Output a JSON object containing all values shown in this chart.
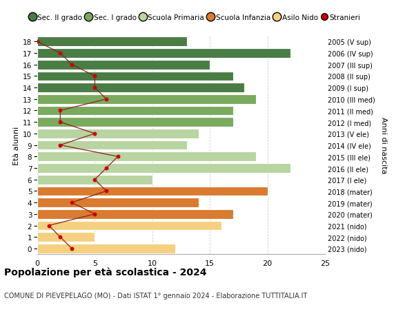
{
  "ages": [
    18,
    17,
    16,
    15,
    14,
    13,
    12,
    11,
    10,
    9,
    8,
    7,
    6,
    5,
    4,
    3,
    2,
    1,
    0
  ],
  "right_labels": [
    "2005 (V sup)",
    "2006 (IV sup)",
    "2007 (III sup)",
    "2008 (II sup)",
    "2009 (I sup)",
    "2010 (III med)",
    "2011 (II med)",
    "2012 (I med)",
    "2013 (V ele)",
    "2014 (IV ele)",
    "2015 (III ele)",
    "2016 (II ele)",
    "2017 (I ele)",
    "2018 (mater)",
    "2019 (mater)",
    "2020 (mater)",
    "2021 (nido)",
    "2022 (nido)",
    "2023 (nido)"
  ],
  "bar_values": [
    13,
    22,
    15,
    17,
    18,
    19,
    17,
    17,
    14,
    13,
    19,
    22,
    10,
    20,
    14,
    17,
    16,
    5,
    12
  ],
  "bar_colors": [
    "#4a7c45",
    "#4a7c45",
    "#4a7c45",
    "#4a7c45",
    "#4a7c45",
    "#7aaa5e",
    "#7aaa5e",
    "#7aaa5e",
    "#b8d4a0",
    "#b8d4a0",
    "#b8d4a0",
    "#b8d4a0",
    "#b8d4a0",
    "#d97b30",
    "#d97b30",
    "#d97b30",
    "#f5d080",
    "#f5d080",
    "#f5d080"
  ],
  "stranieri_values": [
    0,
    2,
    3,
    5,
    5,
    6,
    2,
    2,
    5,
    2,
    7,
    6,
    5,
    6,
    3,
    5,
    1,
    2,
    3
  ],
  "legend_labels": [
    "Sec. II grado",
    "Sec. I grado",
    "Scuola Primaria",
    "Scuola Infanzia",
    "Asilo Nido",
    "Stranieri"
  ],
  "legend_colors": [
    "#4a7c45",
    "#7aaa5e",
    "#b8d4a0",
    "#d97b30",
    "#f5d080",
    "#cc0000"
  ],
  "title": "Popolazione per età scolastica - 2024",
  "subtitle": "COMUNE DI PIEVEPELAGO (MO) - Dati ISTAT 1° gennaio 2024 - Elaborazione TUTTITALIA.IT",
  "ylabel_left": "Età alunni",
  "ylabel_right": "Anni di nascita",
  "xlim": [
    0,
    25
  ],
  "xticks": [
    0,
    5,
    10,
    15,
    20,
    25
  ],
  "background_color": "#ffffff",
  "grid_color": "#cccccc",
  "bar_height": 0.82,
  "stranieri_line_color": "#8b2020",
  "stranieri_dot_color": "#cc0000"
}
